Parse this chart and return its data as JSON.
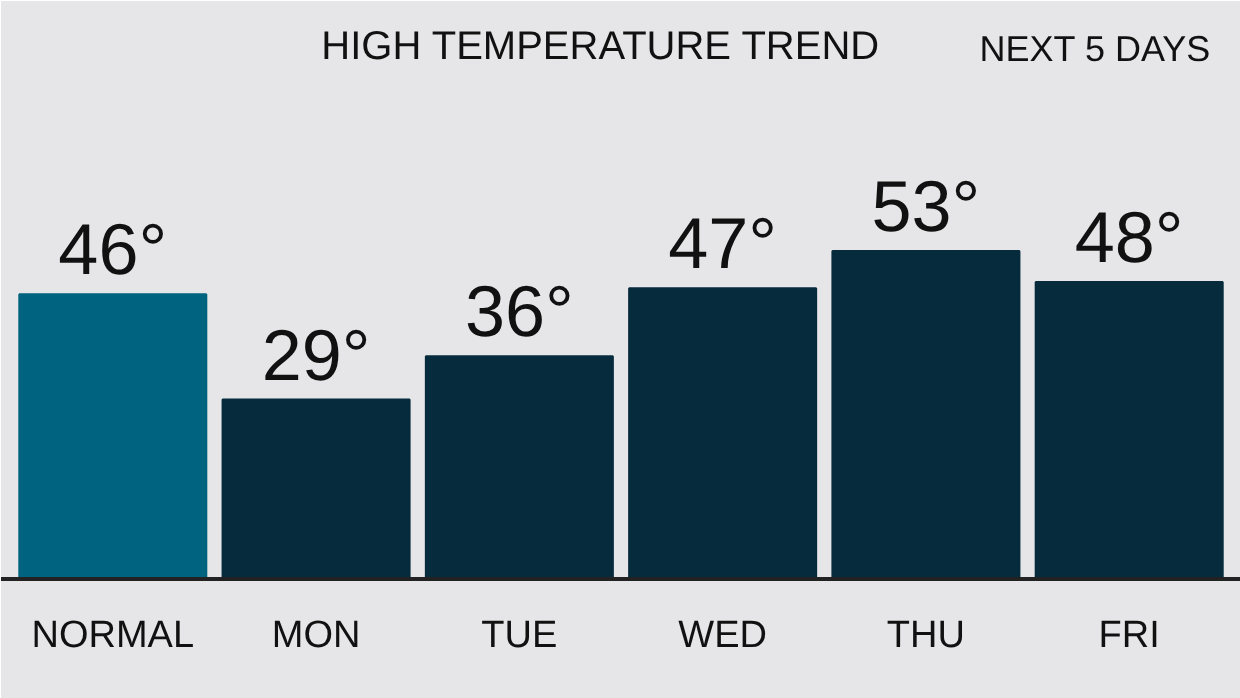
{
  "chart_data": {
    "type": "bar",
    "title": "HIGH TEMPERATURE TREND",
    "subtitle": "NEXT 5 DAYS",
    "categories": [
      "NORMAL",
      "MON",
      "TUE",
      "WED",
      "THU",
      "FRI"
    ],
    "values": [
      46,
      29,
      36,
      47,
      53,
      48
    ],
    "colors": [
      "#00637f",
      "#062b3c",
      "#062b3c",
      "#062b3c",
      "#062b3c",
      "#062b3c"
    ],
    "value_labels": [
      "46°",
      "29°",
      "36°",
      "47°",
      "53°",
      "48°"
    ]
  }
}
